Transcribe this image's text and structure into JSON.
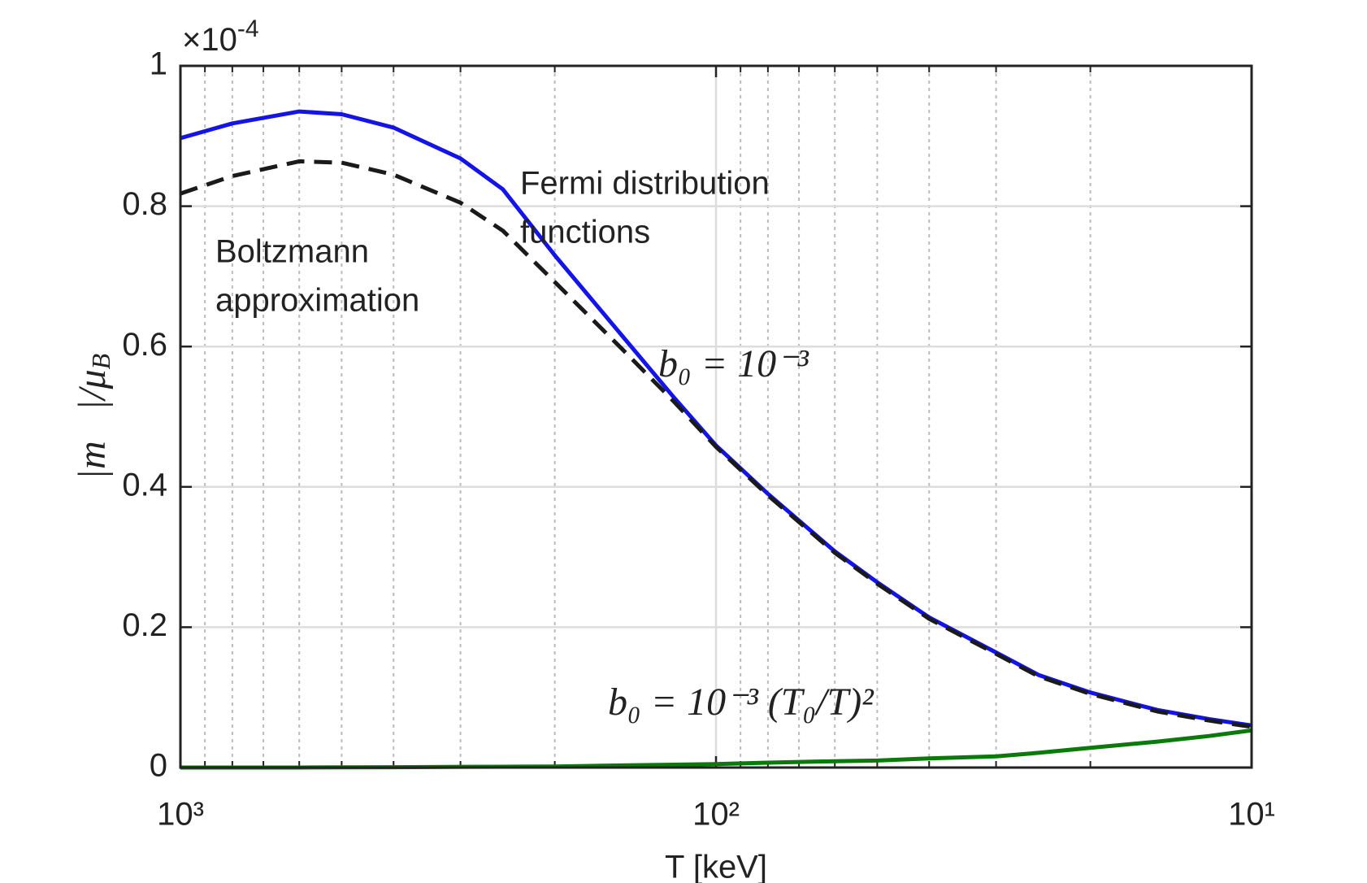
{
  "chart_data": {
    "type": "line",
    "xlabel": "T [keV]",
    "ylabel": {
      "main": "|m⃗|/μ",
      "sub": "B"
    },
    "y_multiplier": {
      "base": "×10",
      "exp": "-4"
    },
    "log_x": true,
    "grid": true,
    "xlim": [
      1000,
      10
    ],
    "xticks": [
      {
        "value": 1000,
        "label": "10³"
      },
      {
        "value": 100,
        "label": "10²"
      },
      {
        "value": 10,
        "label": "10¹"
      }
    ],
    "xminorticks": [
      900,
      800,
      700,
      600,
      500,
      400,
      300,
      200,
      90,
      80,
      70,
      60,
      50,
      40,
      30,
      20
    ],
    "ylim": [
      0,
      1
    ],
    "yticks": [
      0,
      0.2,
      0.4,
      0.6,
      0.8,
      1
    ],
    "x": [
      1000,
      800,
      600,
      500,
      400,
      300,
      250,
      200,
      150,
      120,
      100,
      80,
      60,
      50,
      40,
      30,
      25,
      20,
      15,
      12,
      10
    ],
    "series": [
      {
        "color": "#1414e6",
        "dash": false,
        "values": [
          0.897,
          0.918,
          0.935,
          0.931,
          0.912,
          0.868,
          0.824,
          0.73,
          0.616,
          0.528,
          0.459,
          0.39,
          0.308,
          0.264,
          0.214,
          0.164,
          0.132,
          0.107,
          0.082,
          0.069,
          0.06
        ]
      },
      {
        "color": "#1a1a1a",
        "dash": true,
        "values": [
          0.818,
          0.843,
          0.864,
          0.862,
          0.845,
          0.805,
          0.765,
          0.692,
          0.597,
          0.522,
          0.457,
          0.388,
          0.306,
          0.262,
          0.212,
          0.162,
          0.13,
          0.105,
          0.08,
          0.067,
          0.058
        ]
      },
      {
        "color": "#0a7a0a",
        "dash": false,
        "values": [
          0,
          0,
          0,
          0.0003,
          0.0005,
          0.001,
          0.0012,
          0.0015,
          0.003,
          0.004,
          0.005,
          0.007,
          0.009,
          0.01,
          0.013,
          0.016,
          0.021,
          0.028,
          0.037,
          0.045,
          0.053
        ]
      }
    ],
    "annotations": [
      {
        "lines": [
          "Fermi distribution",
          "functions"
        ],
        "color": "#1414e6"
      },
      {
        "lines": [
          "Boltzmann",
          "approximation"
        ],
        "color": "#000000"
      },
      {
        "lines": [
          "b₀ = 10⁻³"
        ],
        "color": "#1414e6"
      },
      {
        "lines": [
          "b₀ = 10⁻³ (T₀/T)²"
        ],
        "color": "#0a7a0a"
      }
    ]
  }
}
